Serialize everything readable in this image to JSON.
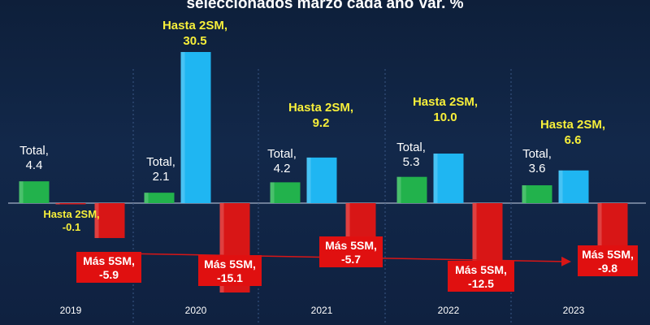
{
  "chart_data": {
    "type": "bar",
    "title": "seleccionados marzo cada año Var. %",
    "categories": [
      "2019",
      "2020",
      "2021",
      "2022",
      "2023"
    ],
    "series": [
      {
        "name": "Total",
        "values": [
          4.4,
          2.1,
          4.2,
          5.3,
          3.6
        ],
        "color": "#22b24c",
        "labels": [
          "Total,\n4.4",
          "Total,\n2.1",
          "Total,\n4.2",
          "Total,\n5.3",
          "Total,\n3.6"
        ]
      },
      {
        "name": "Hasta 2SM",
        "values": [
          -0.1,
          30.5,
          9.2,
          10.0,
          6.6
        ],
        "color": "#1fb6f2",
        "labels": [
          "Hasta 2SM,\n-0.1",
          "Hasta 2SM,\n30.5",
          "Hasta 2SM,\n9.2",
          "Hasta 2SM,\n10.0",
          "Hasta 2SM,\n6.6"
        ]
      },
      {
        "name": "Más 5SM",
        "values": [
          -5.9,
          -15.1,
          -5.7,
          -12.5,
          -9.8
        ],
        "color": "#d81616",
        "labels": [
          "Más 5SM,\n-5.9",
          "Más 5SM,\n-15.1",
          "Más 5SM,\n-5.7",
          "Más 5SM,\n-12.5",
          "Más 5SM,\n-9.8"
        ]
      }
    ],
    "colors": {
      "trend_arrow": "#d81616",
      "label_box": "#e01010",
      "yellow_label": "#f7ef3a"
    }
  }
}
